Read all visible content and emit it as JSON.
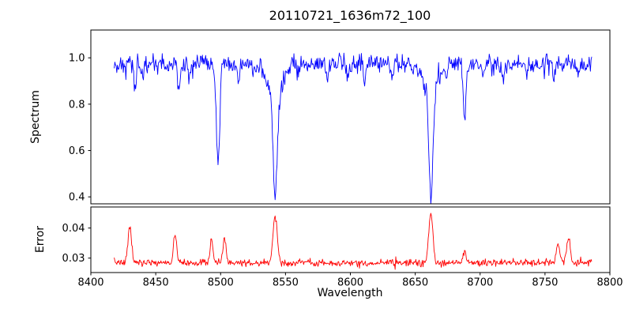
{
  "chart_data": {
    "type": "line",
    "title": "20110721_1636m72_100",
    "xlabel": "Wavelength",
    "xlim": [
      8400,
      8800
    ],
    "x_ticks": [
      {
        "v": 8400,
        "label": "8400"
      },
      {
        "v": 8450,
        "label": "8450"
      },
      {
        "v": 8500,
        "label": "8500"
      },
      {
        "v": 8550,
        "label": "8550"
      },
      {
        "v": 8600,
        "label": "8600"
      },
      {
        "v": 8650,
        "label": "8650"
      },
      {
        "v": 8700,
        "label": "8700"
      },
      {
        "v": 8750,
        "label": "8750"
      },
      {
        "v": 8800,
        "label": "8800"
      }
    ],
    "grid": false,
    "legend": "none",
    "panels": [
      {
        "name": "spectrum",
        "ylabel": "Spectrum",
        "color": "#0000ff",
        "ylim": [
          0.37,
          1.12
        ],
        "y_ticks": [
          {
            "v": 0.4,
            "label": "0.4"
          },
          {
            "v": 0.6,
            "label": "0.6"
          },
          {
            "v": 0.8,
            "label": "0.8"
          },
          {
            "v": 1.0,
            "label": "1.0"
          }
        ],
        "series": {
          "x_start": 8418,
          "x_end": 8786,
          "step": 0.5,
          "baseline": 0.975,
          "noise_sigma": 0.021,
          "seed": 42,
          "clamp_max": 1.09,
          "absorption_lines": [
            {
              "center": 8498.0,
              "depth": 0.44,
              "width": 1.3
            },
            {
              "center": 8542.1,
              "depth": 0.45,
              "width": 1.7
            },
            {
              "center": 8542.1,
              "depth": 0.12,
              "width": 6.0
            },
            {
              "center": 8662.1,
              "depth": 0.46,
              "width": 1.6
            },
            {
              "center": 8662.1,
              "depth": 0.1,
              "width": 5.0
            },
            {
              "center": 8688.0,
              "depth": 0.24,
              "width": 1.1
            },
            {
              "center": 8434,
              "depth": 0.1,
              "width": 0.9
            },
            {
              "center": 8440,
              "depth": 0.07,
              "width": 0.8
            },
            {
              "center": 8468,
              "depth": 0.12,
              "width": 0.9
            },
            {
              "center": 8476,
              "depth": 0.07,
              "width": 0.8
            },
            {
              "center": 8514,
              "depth": 0.09,
              "width": 0.9
            },
            {
              "center": 8526,
              "depth": 0.06,
              "width": 0.8
            },
            {
              "center": 8560,
              "depth": 0.05,
              "width": 0.8
            },
            {
              "center": 8582,
              "depth": 0.07,
              "width": 0.9
            },
            {
              "center": 8598,
              "depth": 0.06,
              "width": 0.8
            },
            {
              "center": 8611,
              "depth": 0.09,
              "width": 0.9
            },
            {
              "center": 8632,
              "depth": 0.06,
              "width": 0.8
            },
            {
              "center": 8648,
              "depth": 0.06,
              "width": 0.8
            },
            {
              "center": 8674,
              "depth": 0.06,
              "width": 0.8
            },
            {
              "center": 8702,
              "depth": 0.06,
              "width": 0.8
            },
            {
              "center": 8718,
              "depth": 0.07,
              "width": 0.9
            },
            {
              "center": 8736,
              "depth": 0.05,
              "width": 0.8
            },
            {
              "center": 8757,
              "depth": 0.06,
              "width": 0.8
            },
            {
              "center": 8775,
              "depth": 0.05,
              "width": 0.8
            }
          ]
        }
      },
      {
        "name": "error",
        "ylabel": "Error",
        "color": "#ff0000",
        "ylim": [
          0.0252,
          0.047
        ],
        "y_ticks": [
          {
            "v": 0.03,
            "label": "0.03"
          },
          {
            "v": 0.04,
            "label": "0.04"
          }
        ],
        "series": {
          "x_start": 8418,
          "x_end": 8786,
          "step": 0.5,
          "baseline": 0.0285,
          "noise_sigma": 0.0006,
          "seed": 7,
          "clamp_max": 0.0462,
          "emission_peaks": [
            {
              "center": 8430,
              "height": 0.0115,
              "width": 1.4
            },
            {
              "center": 8465,
              "height": 0.009,
              "width": 1.2
            },
            {
              "center": 8493,
              "height": 0.008,
              "width": 1.1
            },
            {
              "center": 8503,
              "height": 0.008,
              "width": 1.2
            },
            {
              "center": 8542,
              "height": 0.0155,
              "width": 1.6
            },
            {
              "center": 8662,
              "height": 0.0165,
              "width": 1.6
            },
            {
              "center": 8688,
              "height": 0.004,
              "width": 1.2
            },
            {
              "center": 8760,
              "height": 0.006,
              "width": 1.3
            },
            {
              "center": 8768,
              "height": 0.008,
              "width": 1.3
            }
          ]
        }
      }
    ]
  }
}
